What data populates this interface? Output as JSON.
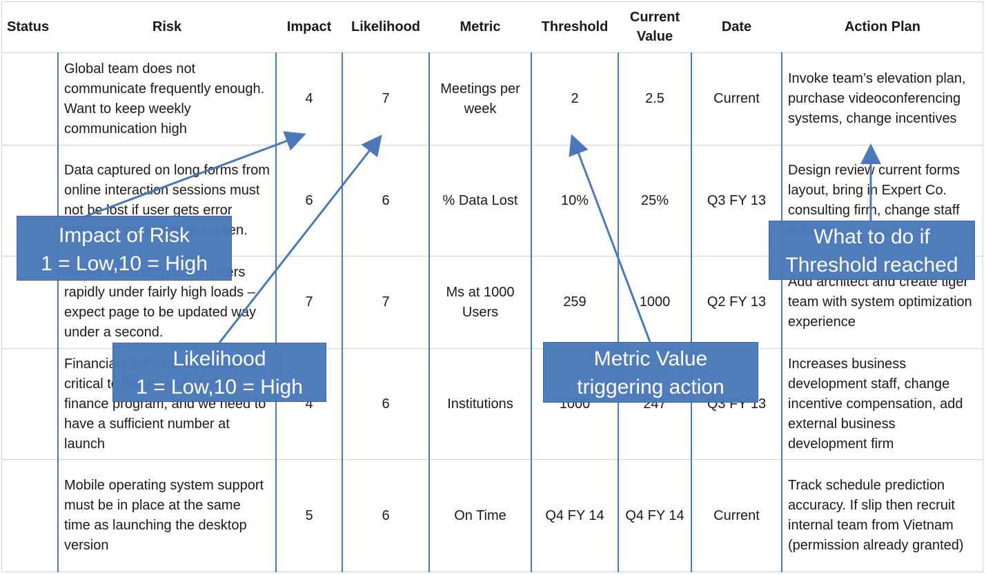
{
  "columns": {
    "status": "Status",
    "risk": "Risk",
    "impact": "Impact",
    "likelihood": "Likelihood",
    "metric": "Metric",
    "threshold": "Threshold",
    "current_value_line1": "Current",
    "current_value_line2": "Value",
    "date": "Date",
    "action_plan": "Action Plan"
  },
  "rows": [
    {
      "status": "",
      "risk": "Global team does not communicate frequently enough. Want to keep weekly communication high",
      "impact": "4",
      "likelihood": "7",
      "metric": "Meetings per week",
      "threshold": "2",
      "current_value": "2.5",
      "date": "Current",
      "action_plan": "Invoke team’s elevation plan, purchase videoconferencing systems, change incentives"
    },
    {
      "status": "",
      "risk": "Data captured on long forms from online interaction sessions must not be lost if user gets error message or returns to screen.",
      "impact": "6",
      "likelihood": "6",
      "metric": "% Data Lost",
      "threshold": "10%",
      "current_value": "25%",
      "date": "Q3 FY 13",
      "action_plan": "Design review current forms layout, bring in Expert Co. consulting firm, change staff balance."
    },
    {
      "status": "",
      "risk": "Server must respond to users rapidly under fairly high loads – expect page to be updated way under a second.",
      "impact": "7",
      "likelihood": "7",
      "metric": "Ms at 1000 Users",
      "threshold": "259",
      "current_value": "1000",
      "date": "Q2 FY 13",
      "action_plan": "Add architect and create tiger team with system optimization experience"
    },
    {
      "status": "",
      "risk": "Financial partner cooperation is critical to this new student finance program, and we need to have a sufficient number at launch",
      "impact": "4",
      "likelihood": "6",
      "metric": "Institutions",
      "threshold": "1000",
      "current_value": "247",
      "date": "Q3 FY 13",
      "action_plan": "Increases business development staff, change incentive compensation, add external business development firm"
    },
    {
      "status": "",
      "risk": "Mobile operating system support must be in place at the same time as launching the desktop version",
      "impact": "5",
      "likelihood": "6",
      "metric": "On Time",
      "threshold": "Q4 FY 14",
      "current_value": "Q4 FY 14",
      "date": "Current",
      "action_plan": "Track schedule prediction accuracy. If slip then recruit internal team from Vietnam (permission already granted)"
    }
  ],
  "callouts": {
    "impact": {
      "line1": "Impact of Risk",
      "line2": "1 = Low,10 = High"
    },
    "likelihood": {
      "line1": "Likelihood",
      "line2": "1 = Low,10 = High"
    },
    "metric": {
      "line1": "Metric Value",
      "line2": "triggering action"
    },
    "action": {
      "line1": "What to do if",
      "line2": "Threshold reached"
    }
  },
  "colors": {
    "callout_fill": "#4a78b8",
    "column_rule": "#4a78b8",
    "row_rule": "#c9d6e6"
  }
}
